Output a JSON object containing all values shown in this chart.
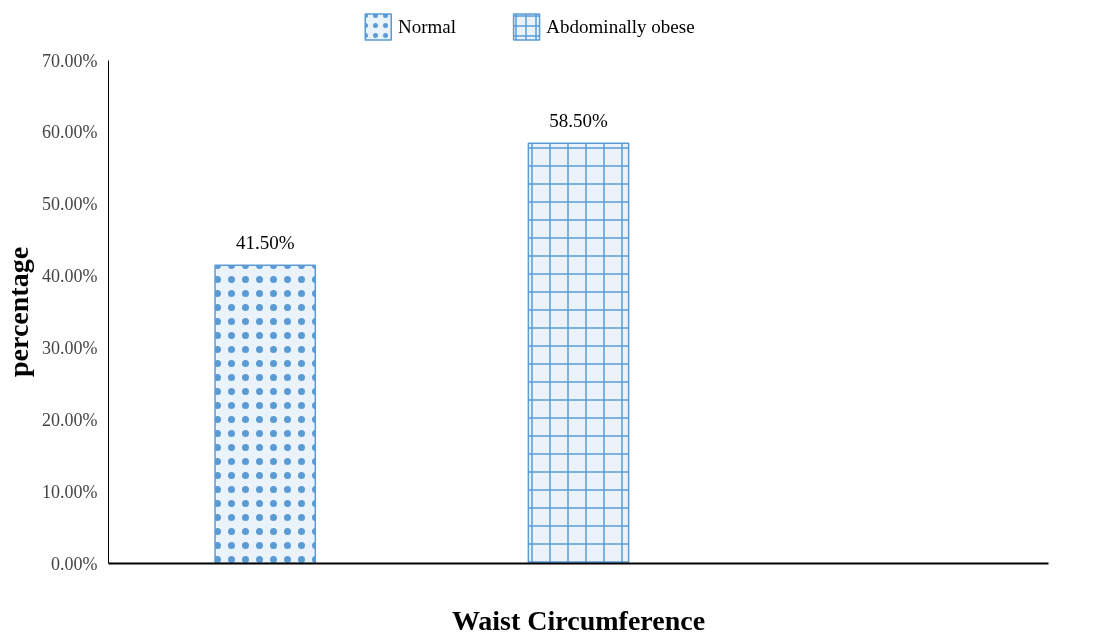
{
  "chart_data": {
    "type": "bar",
    "xlabel": "Waist Circumference",
    "ylabel": "percentage",
    "categories": [
      null,
      null,
      null
    ],
    "series": [
      {
        "name": "Normal",
        "color": "#5b9bd5",
        "values": [
          41.5,
          null,
          null
        ],
        "value_labels": [
          "41.50%",
          null,
          null
        ]
      },
      {
        "name": "Abdominally obese",
        "color": "#5b9bd5",
        "values": [
          null,
          58.5,
          null
        ],
        "value_labels": [
          null,
          "58.50%",
          null
        ]
      }
    ],
    "ylim": [
      0,
      70
    ],
    "yticks": [
      {
        "value": 0,
        "label": "0.00%"
      },
      {
        "value": 10,
        "label": "10.00%"
      },
      {
        "value": 20,
        "label": "20.00%"
      },
      {
        "value": 30,
        "label": "30.00%"
      },
      {
        "value": 40,
        "label": "40.00%"
      },
      {
        "value": 50,
        "label": "50.00%"
      },
      {
        "value": 60,
        "label": "60.00%"
      },
      {
        "value": 70,
        "label": "70.00%"
      }
    ],
    "grid": false,
    "legend": "top"
  }
}
